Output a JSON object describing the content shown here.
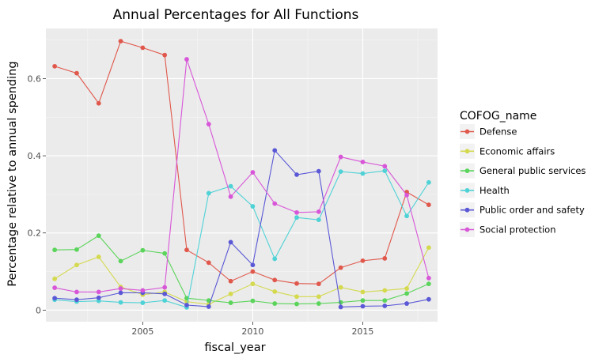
{
  "chart_data": {
    "type": "line",
    "title": "Annual Percentages for All Functions",
    "xlabel": "fiscal_year",
    "ylabel": "Percentage relative to annual spending",
    "xlim": [
      2000.6,
      2018.4
    ],
    "ylim": [
      -0.03,
      0.73
    ],
    "x_ticks": [
      2005,
      2010,
      2015
    ],
    "x_tick_labels": [
      "2005",
      "2010",
      "2015"
    ],
    "y_ticks": [
      0,
      0.2,
      0.4,
      0.6
    ],
    "y_tick_labels": [
      "0",
      "0.2",
      "0.4",
      "0.6"
    ],
    "grid": true,
    "legend_title": "COFOG_name",
    "legend_position": "right",
    "x": [
      2001,
      2002,
      2003,
      2004,
      2005,
      2006,
      2007,
      2008,
      2009,
      2010,
      2011,
      2012,
      2013,
      2014,
      2015,
      2016,
      2017,
      2018
    ],
    "series": [
      {
        "name": "Defense",
        "color": "#e0584c",
        "x": [
          2001,
          2002,
          2003,
          2004,
          2005,
          2006,
          2007,
          2008,
          2009,
          2010,
          2011,
          2012,
          2013,
          2014,
          2015,
          2016,
          2017,
          2018
        ],
        "values": [
          0.632,
          0.614,
          0.536,
          0.697,
          0.68,
          0.661,
          0.156,
          0.123,
          0.075,
          0.1,
          0.078,
          0.069,
          0.068,
          0.11,
          0.128,
          0.134,
          0.306,
          0.273
        ]
      },
      {
        "name": "Economic affairs",
        "color": "#d4d94e",
        "x": [
          2001,
          2002,
          2003,
          2004,
          2005,
          2006,
          2007,
          2008,
          2009,
          2010,
          2011,
          2012,
          2013,
          2014,
          2015,
          2016,
          2017,
          2018
        ],
        "values": [
          0.081,
          0.117,
          0.138,
          0.06,
          0.04,
          0.047,
          0.022,
          0.015,
          0.042,
          0.068,
          0.048,
          0.035,
          0.035,
          0.059,
          0.047,
          0.051,
          0.056,
          0.162
        ]
      },
      {
        "name": "General public services",
        "color": "#5ad45a",
        "x": [
          2001,
          2002,
          2003,
          2004,
          2005,
          2006,
          2007,
          2008,
          2009,
          2010,
          2011,
          2012,
          2013,
          2014,
          2015,
          2016,
          2017,
          2018
        ],
        "values": [
          0.156,
          0.157,
          0.193,
          0.127,
          0.155,
          0.147,
          0.031,
          0.025,
          0.019,
          0.024,
          0.017,
          0.016,
          0.017,
          0.02,
          0.025,
          0.025,
          0.043,
          0.068
        ]
      },
      {
        "name": "Health",
        "color": "#4fd2d6",
        "x": [
          2001,
          2002,
          2003,
          2004,
          2005,
          2006,
          2007,
          2008,
          2009,
          2010,
          2011,
          2012,
          2013,
          2014,
          2015,
          2016,
          2017,
          2018
        ],
        "values": [
          0.027,
          0.022,
          0.024,
          0.02,
          0.019,
          0.025,
          0.007,
          0.303,
          0.321,
          0.269,
          0.133,
          0.24,
          0.234,
          0.359,
          0.354,
          0.361,
          0.244,
          0.331
        ]
      },
      {
        "name": "Public order and safety",
        "color": "#5a58d6",
        "x": [
          2001,
          2002,
          2003,
          2004,
          2005,
          2006,
          2007,
          2008,
          2009,
          2010,
          2011,
          2012,
          2013,
          2014,
          2015,
          2016,
          2017,
          2018
        ],
        "values": [
          0.031,
          0.027,
          0.032,
          0.045,
          0.045,
          0.042,
          0.013,
          0.009,
          0.176,
          0.117,
          0.414,
          0.351,
          0.36,
          0.008,
          0.01,
          0.011,
          0.017,
          0.028
        ]
      },
      {
        "name": "Social protection",
        "color": "#d856d8",
        "x": [
          2001,
          2002,
          2003,
          2004,
          2005,
          2006,
          2007,
          2008,
          2009,
          2010,
          2011,
          2012,
          2013,
          2014,
          2015,
          2016,
          2017,
          2018
        ],
        "values": [
          0.058,
          0.047,
          0.047,
          0.056,
          0.051,
          0.059,
          0.65,
          0.482,
          0.294,
          0.357,
          0.276,
          0.253,
          0.255,
          0.397,
          0.384,
          0.373,
          0.298,
          0.083
        ]
      }
    ]
  }
}
